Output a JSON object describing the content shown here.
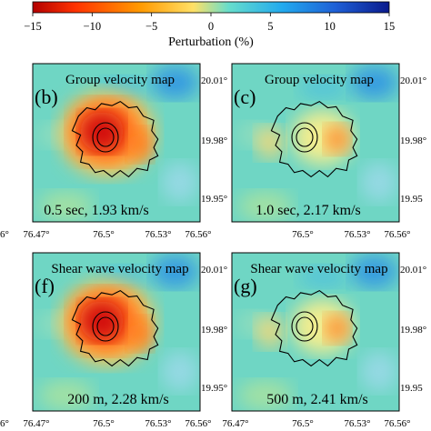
{
  "colorbar": {
    "label": "Perturbation (%)",
    "ticks": [
      "−15",
      "−10",
      "−5",
      "0",
      "5",
      "10",
      "15"
    ],
    "colors": [
      "#b30000",
      "#ff3300",
      "#ff9900",
      "#ffe066",
      "#66ddcc",
      "#22aaee",
      "#1f5fd6",
      "#0a1a8c"
    ]
  },
  "panels": [
    {
      "id": "b",
      "letter": "(b)",
      "title": "Group velocity map",
      "caption": "0.5 sec, 1.93 km/s",
      "y_ticks": [
        "20.01°",
        "19.98°",
        "19.95°"
      ],
      "x_ticks": [
        "76.47°",
        "76.5°",
        "76.53°",
        "76.56°"
      ],
      "left_stub": "6°",
      "anomaly": "strong-red"
    },
    {
      "id": "c",
      "letter": "(c)",
      "title": "Group velocity map",
      "caption": "1.0 sec, 2.17 km/s",
      "y_ticks": [
        "20.01°",
        "19.98°",
        "19.95"
      ],
      "x_ticks": [
        "76.5°",
        "76.53°",
        "76.56°"
      ],
      "anomaly": "weak-orange"
    },
    {
      "id": "f",
      "letter": "(f)",
      "title": "Shear wave velocity map",
      "caption": "200 m, 2.28 km/s",
      "y_ticks": [
        "20.01°",
        "19.98°",
        "19.95°"
      ],
      "x_ticks": [
        "76.47°",
        "76.5°",
        "76.53°",
        "76.56°"
      ],
      "left_stub": "6°",
      "anomaly": "strong-red"
    },
    {
      "id": "g",
      "letter": "(g)",
      "title": "Shear wave velocity map",
      "caption": "500 m, 2.41 km/s",
      "y_ticks": [
        "20.01°",
        "19.98°",
        "19.95"
      ],
      "x_ticks": [
        "76.47°",
        "76.5°",
        "76.53°",
        "76.56°"
      ],
      "anomaly": "weak-orange"
    }
  ]
}
